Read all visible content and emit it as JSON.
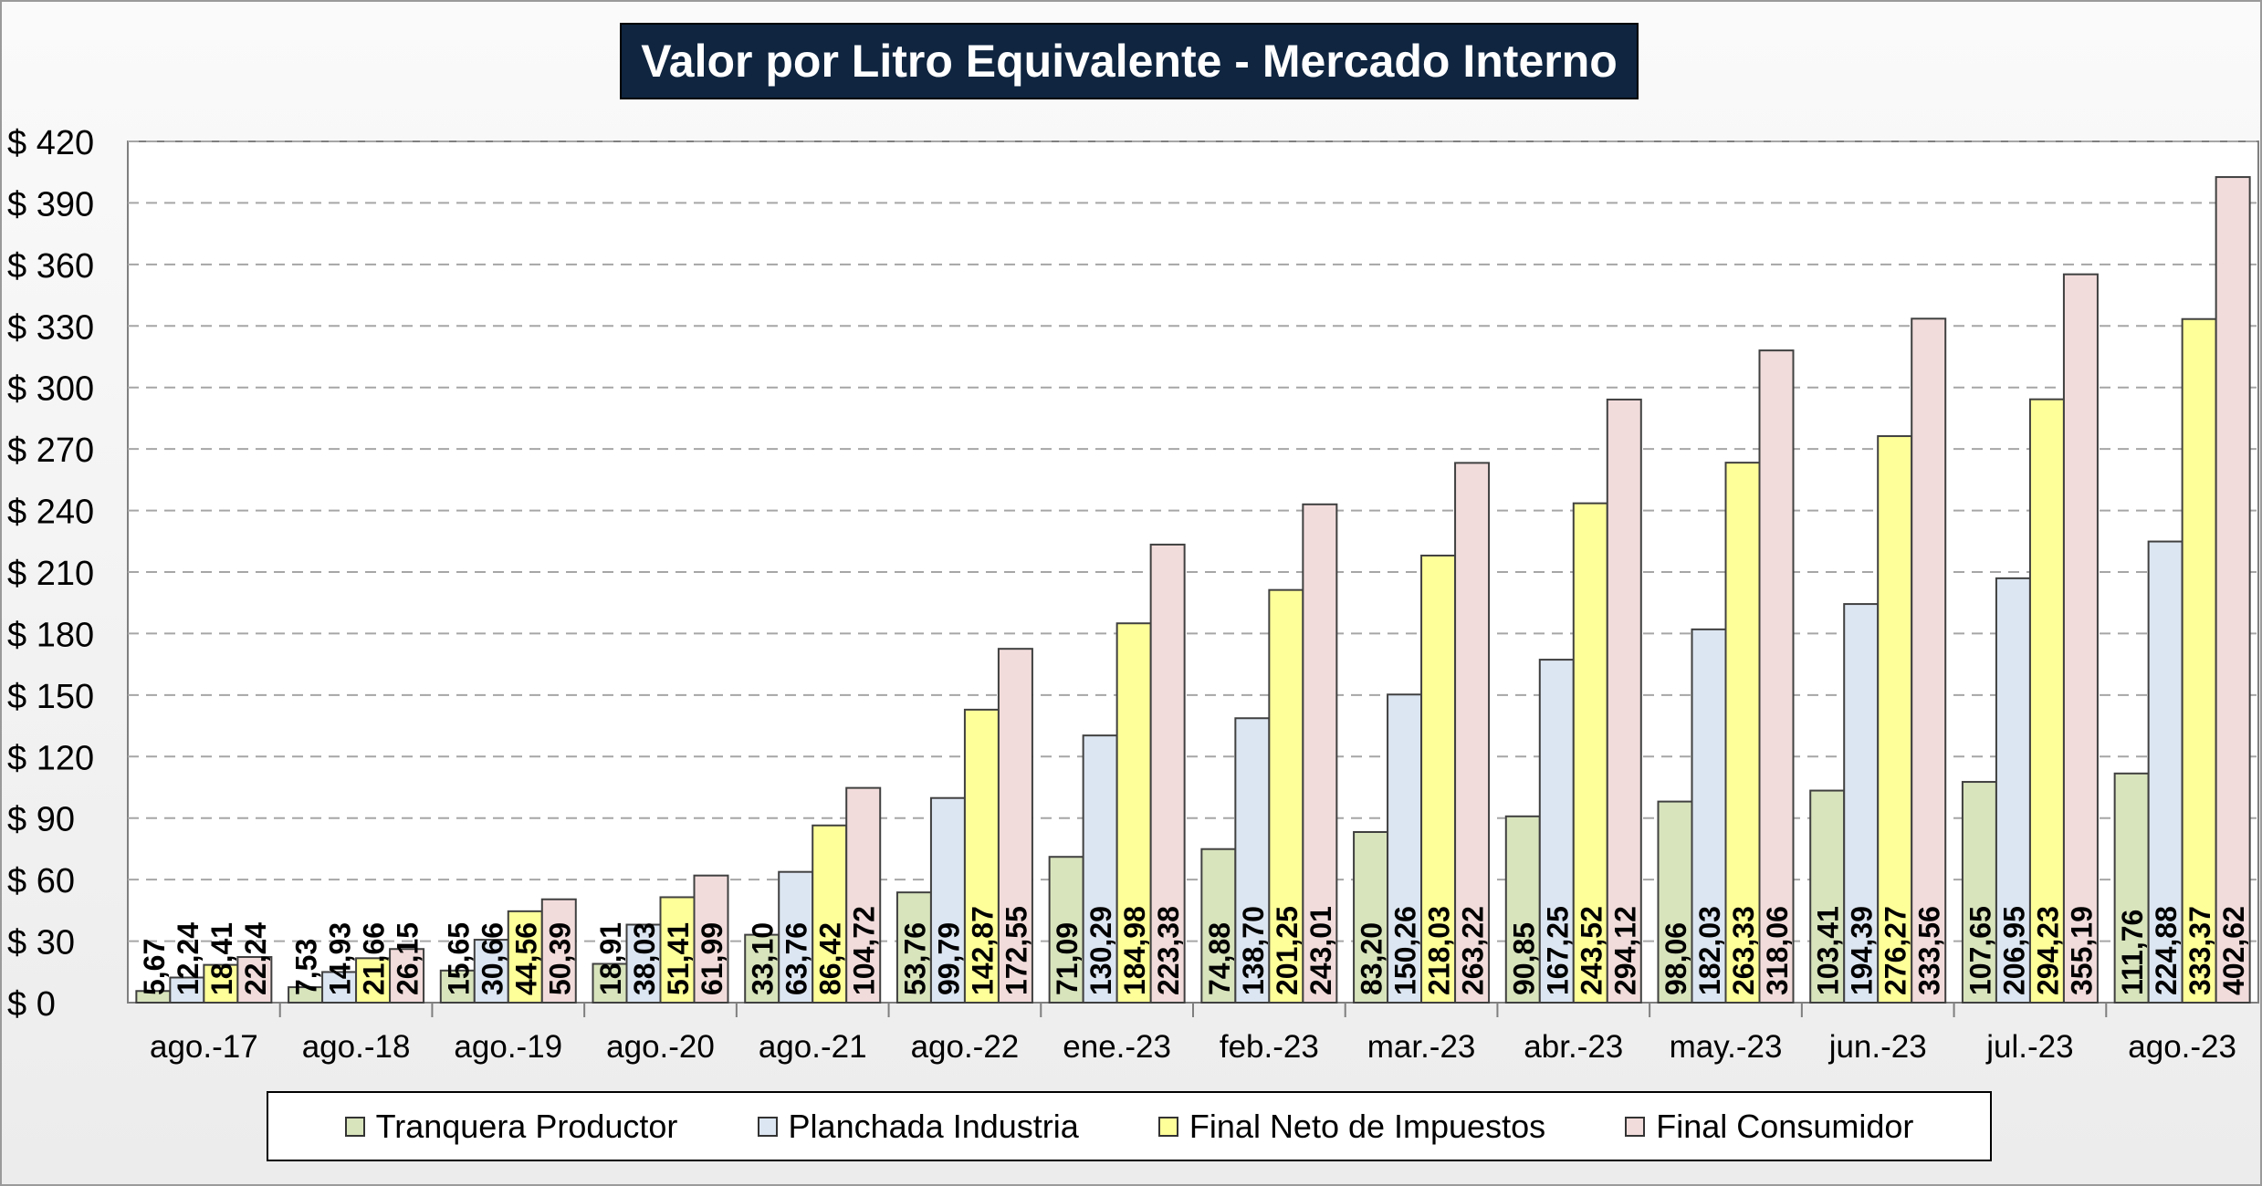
{
  "chart_data": {
    "type": "bar",
    "title": "Valor por Litro Equivalente - Mercado Interno",
    "xlabel": "",
    "ylabel": "",
    "ylim": [
      0,
      420
    ],
    "y_tick_step": 30,
    "y_tick_prefix": "$ ",
    "grid": true,
    "legend_position": "bottom",
    "categories": [
      "ago.-17",
      "ago.-18",
      "ago.-19",
      "ago.-20",
      "ago.-21",
      "ago.-22",
      "ene.-23",
      "feb.-23",
      "mar.-23",
      "abr.-23",
      "may.-23",
      "jun.-23",
      "jul.-23",
      "ago.-23"
    ],
    "series": [
      {
        "name": "Tranquera Productor",
        "color": "#d8e4bc",
        "values": [
          5.67,
          7.53,
          15.65,
          18.91,
          33.1,
          53.76,
          71.09,
          74.88,
          83.2,
          90.85,
          98.06,
          103.41,
          107.65,
          111.76
        ],
        "labels": [
          "5,67",
          "7,53",
          "15,65",
          "18,91",
          "33,10",
          "53,76",
          "71,09",
          "74,88",
          "83,20",
          "90,85",
          "98,06",
          "103,41",
          "107,65",
          "111,76"
        ]
      },
      {
        "name": "Planchada Industria",
        "color": "#dce6f2",
        "values": [
          12.24,
          14.93,
          30.66,
          38.03,
          63.76,
          99.79,
          130.29,
          138.7,
          150.26,
          167.25,
          182.03,
          194.39,
          206.95,
          224.88
        ],
        "labels": [
          "12,24",
          "14,93",
          "30,66",
          "38,03",
          "63,76",
          "99,79",
          "130,29",
          "138,70",
          "150,26",
          "167,25",
          "182,03",
          "194,39",
          "206,95",
          "224,88"
        ]
      },
      {
        "name": "Final Neto de Impuestos",
        "color": "#ffff99",
        "values": [
          18.41,
          21.66,
          44.56,
          51.41,
          86.42,
          142.87,
          184.98,
          201.25,
          218.03,
          243.52,
          263.33,
          276.27,
          294.23,
          333.37
        ],
        "labels": [
          "18,41",
          "21,66",
          "44,56",
          "51,41",
          "86,42",
          "142,87",
          "184,98",
          "201,25",
          "218,03",
          "243,52",
          "263,33",
          "276,27",
          "294,23",
          "333,37"
        ]
      },
      {
        "name": "Final Consumidor",
        "color": "#f2dcdb",
        "values": [
          22.24,
          26.15,
          50.39,
          61.99,
          104.72,
          172.55,
          223.38,
          243.01,
          263.22,
          294.12,
          318.06,
          333.56,
          355.19,
          402.62
        ],
        "labels": [
          "22,24",
          "26,15",
          "50,39",
          "61,99",
          "104,72",
          "172,55",
          "223,38",
          "243,01",
          "263,22",
          "294,12",
          "318,06",
          "333,56",
          "355,19",
          "402,62"
        ]
      }
    ]
  }
}
